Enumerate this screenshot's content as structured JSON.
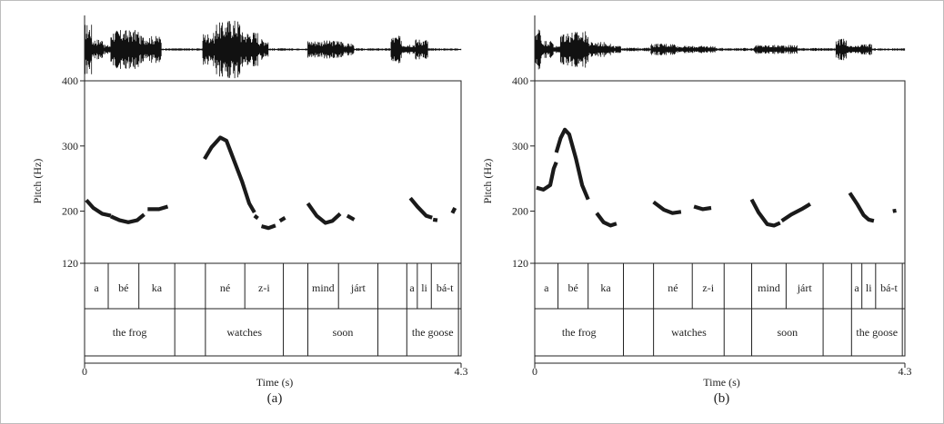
{
  "chart_data": [
    {
      "type": "line",
      "panel_label": "(a)",
      "xlabel": "Time (s)",
      "ylabel": "Pitch (Hz)",
      "xlim": [
        0,
        4.3
      ],
      "ylim": [
        120,
        400
      ],
      "xticks": [
        {
          "value": 0,
          "label": "0"
        },
        {
          "value": 4.3,
          "label": "4.3"
        }
      ],
      "yticks": [
        {
          "value": 120,
          "label": "120"
        },
        {
          "value": 200,
          "label": "200"
        },
        {
          "value": 300,
          "label": "300"
        },
        {
          "value": 400,
          "label": "400"
        }
      ],
      "waveform": [
        {
          "start": 0.0,
          "end": 0.08,
          "amp": 0.85
        },
        {
          "start": 0.08,
          "end": 0.22,
          "amp": 0.35
        },
        {
          "start": 0.22,
          "end": 0.3,
          "amp": 0.15
        },
        {
          "start": 0.3,
          "end": 0.62,
          "amp": 0.65
        },
        {
          "start": 0.62,
          "end": 0.88,
          "amp": 0.45
        },
        {
          "start": 0.88,
          "end": 1.35,
          "amp": 0.04
        },
        {
          "start": 1.35,
          "end": 1.5,
          "amp": 0.55
        },
        {
          "start": 1.5,
          "end": 1.62,
          "amp": 0.9
        },
        {
          "start": 1.62,
          "end": 1.78,
          "amp": 1.0
        },
        {
          "start": 1.78,
          "end": 1.98,
          "amp": 0.6
        },
        {
          "start": 1.98,
          "end": 2.1,
          "amp": 0.35
        },
        {
          "start": 2.1,
          "end": 2.55,
          "amp": 0.04
        },
        {
          "start": 2.55,
          "end": 2.95,
          "amp": 0.3
        },
        {
          "start": 2.95,
          "end": 3.08,
          "amp": 0.2
        },
        {
          "start": 3.08,
          "end": 3.5,
          "amp": 0.04
        },
        {
          "start": 3.5,
          "end": 3.62,
          "amp": 0.45
        },
        {
          "start": 3.62,
          "end": 3.78,
          "amp": 0.2
        },
        {
          "start": 3.78,
          "end": 3.92,
          "amp": 0.35
        },
        {
          "start": 3.92,
          "end": 4.3,
          "amp": 0.04
        }
      ],
      "series": [
        {
          "points": [
            [
              0.02,
              217
            ],
            [
              0.1,
              205
            ],
            [
              0.2,
              196
            ],
            [
              0.3,
              193
            ]
          ]
        },
        {
          "points": [
            [
              0.3,
              192
            ],
            [
              0.4,
              186
            ],
            [
              0.5,
              183
            ],
            [
              0.6,
              186
            ],
            [
              0.68,
              195
            ]
          ]
        },
        {
          "points": [
            [
              0.72,
              203
            ],
            [
              0.85,
              203
            ],
            [
              0.95,
              207
            ]
          ]
        },
        {
          "points": [
            [
              1.37,
              280
            ],
            [
              1.45,
              298
            ],
            [
              1.55,
              313
            ],
            [
              1.62,
              308
            ],
            [
              1.7,
              280
            ],
            [
              1.8,
              245
            ],
            [
              1.88,
              212
            ],
            [
              1.94,
              198
            ]
          ]
        },
        {
          "points": [
            [
              1.94,
              193
            ],
            [
              1.98,
              189
            ]
          ]
        },
        {
          "points": [
            [
              2.02,
              177
            ],
            [
              2.1,
              174
            ],
            [
              2.18,
              178
            ]
          ]
        },
        {
          "points": [
            [
              2.23,
              185
            ],
            [
              2.29,
              190
            ]
          ]
        },
        {
          "points": [
            [
              2.55,
              212
            ],
            [
              2.65,
              193
            ],
            [
              2.75,
              182
            ],
            [
              2.83,
              185
            ],
            [
              2.92,
              196
            ]
          ]
        },
        {
          "points": [
            [
              3.0,
              193
            ],
            [
              3.08,
              187
            ]
          ]
        },
        {
          "points": [
            [
              3.72,
              220
            ],
            [
              3.8,
              207
            ],
            [
              3.9,
              193
            ],
            [
              3.97,
              190
            ]
          ]
        },
        {
          "points": [
            [
              3.98,
              187
            ],
            [
              4.03,
              186
            ]
          ]
        },
        {
          "points": [
            [
              4.2,
              197
            ],
            [
              4.23,
              205
            ]
          ]
        }
      ],
      "syllables": [
        {
          "start": 0.0,
          "end": 0.27,
          "label": "a"
        },
        {
          "start": 0.27,
          "end": 0.62,
          "label": "bé"
        },
        {
          "start": 0.62,
          "end": 1.03,
          "label": "ka"
        },
        {
          "start": 1.03,
          "end": 1.38,
          "label": ""
        },
        {
          "start": 1.38,
          "end": 1.83,
          "label": "né"
        },
        {
          "start": 1.83,
          "end": 2.27,
          "label": "z-i"
        },
        {
          "start": 2.27,
          "end": 2.55,
          "label": ""
        },
        {
          "start": 2.55,
          "end": 2.9,
          "label": "mind"
        },
        {
          "start": 2.9,
          "end": 3.35,
          "label": "járt"
        },
        {
          "start": 3.35,
          "end": 3.68,
          "label": ""
        },
        {
          "start": 3.68,
          "end": 3.8,
          "label": "a"
        },
        {
          "start": 3.8,
          "end": 3.96,
          "label": "li"
        },
        {
          "start": 3.96,
          "end": 4.27,
          "label": "bá-t"
        },
        {
          "start": 4.27,
          "end": 4.3,
          "label": ""
        }
      ],
      "words": [
        {
          "start": 0.0,
          "end": 1.03,
          "label": "the frog"
        },
        {
          "start": 1.03,
          "end": 1.38,
          "label": ""
        },
        {
          "start": 1.38,
          "end": 2.27,
          "label": "watches"
        },
        {
          "start": 2.27,
          "end": 2.55,
          "label": ""
        },
        {
          "start": 2.55,
          "end": 3.35,
          "label": "soon"
        },
        {
          "start": 3.35,
          "end": 3.68,
          "label": ""
        },
        {
          "start": 3.68,
          "end": 4.27,
          "label": "the goose"
        },
        {
          "start": 4.27,
          "end": 4.3,
          "label": ""
        }
      ]
    },
    {
      "type": "line",
      "panel_label": "(b)",
      "xlabel": "Time (s)",
      "ylabel": "Pitch (Hz)",
      "xlim": [
        0,
        4.3
      ],
      "ylim": [
        120,
        400
      ],
      "xticks": [
        {
          "value": 0,
          "label": "0"
        },
        {
          "value": 4.3,
          "label": "4.3"
        }
      ],
      "yticks": [
        {
          "value": 120,
          "label": "120"
        },
        {
          "value": 200,
          "label": "200"
        },
        {
          "value": 300,
          "label": "300"
        },
        {
          "value": 400,
          "label": "400"
        }
      ],
      "waveform": [
        {
          "start": 0.0,
          "end": 0.08,
          "amp": 0.75
        },
        {
          "start": 0.08,
          "end": 0.22,
          "amp": 0.3
        },
        {
          "start": 0.22,
          "end": 0.3,
          "amp": 0.12
        },
        {
          "start": 0.3,
          "end": 0.62,
          "amp": 0.6
        },
        {
          "start": 0.62,
          "end": 0.88,
          "amp": 0.25
        },
        {
          "start": 0.88,
          "end": 1.0,
          "amp": 0.12
        },
        {
          "start": 1.0,
          "end": 1.35,
          "amp": 0.06
        },
        {
          "start": 1.35,
          "end": 1.65,
          "amp": 0.2
        },
        {
          "start": 1.65,
          "end": 2.1,
          "amp": 0.12
        },
        {
          "start": 2.1,
          "end": 2.55,
          "amp": 0.05
        },
        {
          "start": 2.55,
          "end": 3.05,
          "amp": 0.15
        },
        {
          "start": 3.05,
          "end": 3.5,
          "amp": 0.05
        },
        {
          "start": 3.5,
          "end": 3.62,
          "amp": 0.35
        },
        {
          "start": 3.62,
          "end": 3.78,
          "amp": 0.12
        },
        {
          "start": 3.78,
          "end": 3.92,
          "amp": 0.18
        },
        {
          "start": 3.92,
          "end": 4.3,
          "amp": 0.04
        }
      ],
      "series": [
        {
          "points": [
            [
              0.02,
              236
            ],
            [
              0.1,
              233
            ],
            [
              0.18,
              240
            ],
            [
              0.22,
              265
            ],
            [
              0.25,
              275
            ]
          ]
        },
        {
          "points": [
            [
              0.25,
              290
            ],
            [
              0.3,
              312
            ],
            [
              0.35,
              325
            ],
            [
              0.4,
              318
            ],
            [
              0.48,
              280
            ],
            [
              0.55,
              240
            ],
            [
              0.62,
              218
            ]
          ]
        },
        {
          "points": [
            [
              0.72,
              197
            ],
            [
              0.8,
              183
            ],
            [
              0.88,
              178
            ],
            [
              0.95,
              181
            ]
          ]
        },
        {
          "points": [
            [
              1.38,
              214
            ],
            [
              1.5,
              202
            ],
            [
              1.6,
              197
            ],
            [
              1.7,
              199
            ]
          ]
        },
        {
          "points": [
            [
              1.85,
              207
            ],
            [
              1.95,
              203
            ],
            [
              2.05,
              205
            ]
          ]
        },
        {
          "points": [
            [
              2.52,
              218
            ],
            [
              2.6,
              198
            ],
            [
              2.7,
              180
            ],
            [
              2.78,
              178
            ],
            [
              2.85,
              182
            ]
          ]
        },
        {
          "points": [
            [
              2.87,
              185
            ],
            [
              2.98,
              195
            ],
            [
              3.1,
              203
            ],
            [
              3.2,
              211
            ]
          ]
        },
        {
          "points": [
            [
              3.66,
              228
            ],
            [
              3.75,
              210
            ],
            [
              3.82,
              194
            ],
            [
              3.88,
              187
            ],
            [
              3.94,
              185
            ]
          ]
        },
        {
          "points": [
            [
              4.16,
              200
            ],
            [
              4.2,
              201
            ]
          ]
        }
      ],
      "syllables": [
        {
          "start": 0.0,
          "end": 0.27,
          "label": "a"
        },
        {
          "start": 0.27,
          "end": 0.62,
          "label": "bé"
        },
        {
          "start": 0.62,
          "end": 1.03,
          "label": "ka"
        },
        {
          "start": 1.03,
          "end": 1.38,
          "label": ""
        },
        {
          "start": 1.38,
          "end": 1.83,
          "label": "né"
        },
        {
          "start": 1.83,
          "end": 2.2,
          "label": "z-i"
        },
        {
          "start": 2.2,
          "end": 2.52,
          "label": ""
        },
        {
          "start": 2.52,
          "end": 2.92,
          "label": "mind"
        },
        {
          "start": 2.92,
          "end": 3.35,
          "label": "járt"
        },
        {
          "start": 3.35,
          "end": 3.68,
          "label": ""
        },
        {
          "start": 3.68,
          "end": 3.8,
          "label": "a"
        },
        {
          "start": 3.8,
          "end": 3.96,
          "label": "li"
        },
        {
          "start": 3.96,
          "end": 4.27,
          "label": "bá-t"
        },
        {
          "start": 4.27,
          "end": 4.3,
          "label": ""
        }
      ],
      "words": [
        {
          "start": 0.0,
          "end": 1.03,
          "label": "the frog"
        },
        {
          "start": 1.03,
          "end": 1.38,
          "label": ""
        },
        {
          "start": 1.38,
          "end": 2.2,
          "label": "watches"
        },
        {
          "start": 2.2,
          "end": 2.52,
          "label": ""
        },
        {
          "start": 2.52,
          "end": 3.35,
          "label": "soon"
        },
        {
          "start": 3.35,
          "end": 3.68,
          "label": ""
        },
        {
          "start": 3.68,
          "end": 4.27,
          "label": "the goose"
        },
        {
          "start": 4.27,
          "end": 4.3,
          "label": ""
        }
      ]
    }
  ]
}
